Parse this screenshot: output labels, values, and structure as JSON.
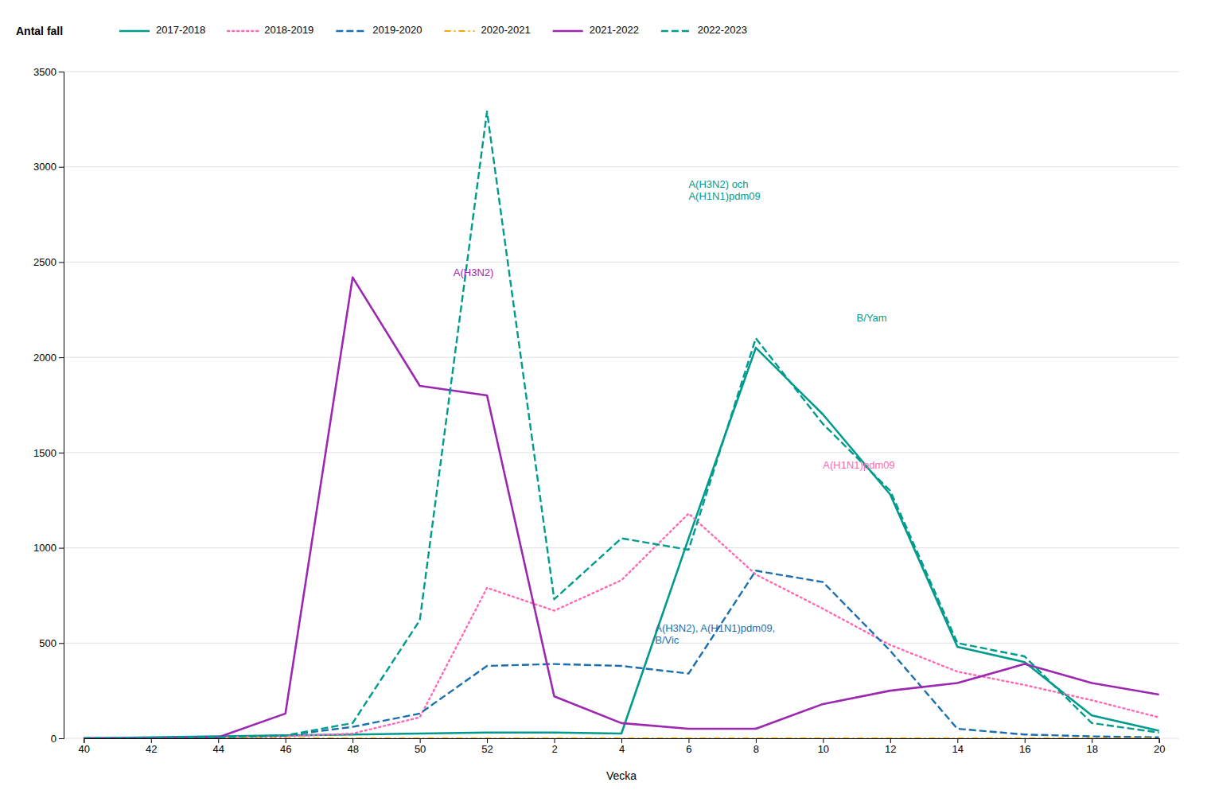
{
  "chart_data": {
    "type": "line",
    "title": "",
    "xlabel": "Vecka",
    "ylabel": "Antal fall",
    "categories": [
      "40",
      "42",
      "44",
      "46",
      "48",
      "50",
      "52",
      "2",
      "4",
      "6",
      "8",
      "10",
      "12",
      "14",
      "16",
      "18",
      "20"
    ],
    "ylim": [
      0,
      3500
    ],
    "yticks": [
      0,
      500,
      1000,
      1500,
      2000,
      2500,
      3000,
      3500
    ],
    "grid": true,
    "legend": "top",
    "series": [
      {
        "name": "2017-2018",
        "color": "#009B8D",
        "line_style": "solid",
        "values": [
          0,
          5,
          10,
          15,
          20,
          25,
          30,
          30,
          25,
          1050,
          2050,
          1700,
          1280,
          480,
          400,
          120,
          40
        ]
      },
      {
        "name": "2018-2019",
        "color": "#FF69B4",
        "line_style": "dotted",
        "values": [
          0,
          0,
          5,
          10,
          25,
          110,
          790,
          670,
          830,
          1180,
          860,
          680,
          490,
          350,
          280,
          200,
          110
        ]
      },
      {
        "name": "2019-2020",
        "color": "#1A6FAF",
        "line_style": "dashed",
        "values": [
          0,
          0,
          5,
          15,
          60,
          130,
          380,
          390,
          380,
          340,
          880,
          820,
          460,
          50,
          20,
          10,
          5
        ]
      },
      {
        "name": "2020-2021",
        "color": "#FFA500",
        "line_style": "dashdot",
        "values": [
          0,
          0,
          0,
          0,
          0,
          0,
          0,
          0,
          0,
          0,
          0,
          0,
          0,
          0,
          0,
          0,
          0
        ]
      },
      {
        "name": "2021-2022",
        "color": "#9C27B0",
        "line_style": "solid",
        "values": [
          0,
          0,
          5,
          130,
          2420,
          1850,
          1800,
          220,
          80,
          50,
          50,
          180,
          250,
          290,
          390,
          290,
          230
        ]
      },
      {
        "name": "2022-2023",
        "color": "#009B8D",
        "line_style": "dashed",
        "values": [
          0,
          0,
          5,
          15,
          80,
          620,
          3290,
          730,
          1050,
          990,
          2100,
          1650,
          1300,
          500,
          430,
          80,
          30
        ]
      }
    ],
    "annotations": [
      {
        "text": "A(H3N2) och\nA(H1N1)pdm09",
        "x": 9,
        "y": 2870,
        "color": "#009B8D"
      },
      {
        "text": "A(H3N2)",
        "x": 5.5,
        "y": 2440,
        "color": "#9C27B0"
      },
      {
        "text": "B/Yam",
        "x": 11.5,
        "y": 2200,
        "color": "#009B8D"
      },
      {
        "text": "A(H1N1)pdm09",
        "x": 11.0,
        "y": 1430,
        "color": "#FF69B4"
      },
      {
        "text": "A(H3N2), A(H1N1)pdm09,\nB/Vic",
        "x": 8.5,
        "y": 540,
        "color": "#1A6FAF"
      }
    ]
  }
}
